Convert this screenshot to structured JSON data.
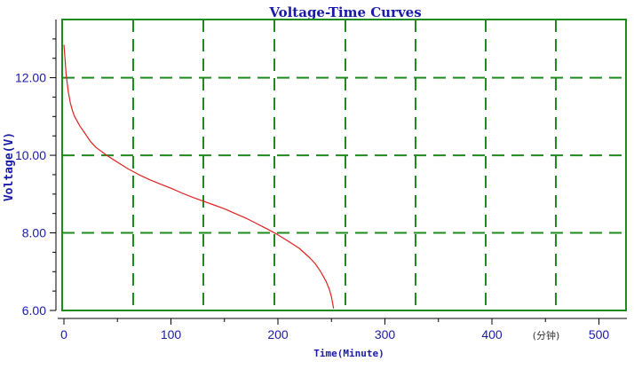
{
  "chart_data": {
    "type": "line",
    "title": "Voltage-Time Curves",
    "xlabel": "Time(Minute)",
    "ylabel": "Voltage(V)",
    "x_unit_note": "(分钟)",
    "xlim": [
      0,
      525
    ],
    "ylim": [
      6.0,
      13.5
    ],
    "x_ticks": [
      0,
      100,
      200,
      300,
      400,
      500
    ],
    "y_ticks": [
      6.0,
      8.0,
      10.0,
      12.0
    ],
    "y_tick_labels": [
      "6.00",
      "8.00",
      "10.00",
      "12.00"
    ],
    "grid": true,
    "colors": {
      "frame": "#1f8a1f",
      "grid": "#1f8a1f",
      "line": "#e02020",
      "text": "#1a1aa8"
    },
    "series": [
      {
        "x": [
          0,
          1,
          2,
          4,
          6,
          8,
          10,
          15,
          20,
          25,
          30,
          40,
          50,
          60,
          70,
          80,
          90,
          100,
          110,
          120,
          130,
          140,
          150,
          160,
          170,
          180,
          190,
          200,
          210,
          220,
          230,
          235,
          240,
          245,
          248,
          250,
          251,
          252
        ],
        "y": [
          12.85,
          12.5,
          12.1,
          11.65,
          11.35,
          11.15,
          11.0,
          10.75,
          10.55,
          10.35,
          10.2,
          10.0,
          9.82,
          9.65,
          9.5,
          9.37,
          9.26,
          9.15,
          9.03,
          8.92,
          8.82,
          8.72,
          8.62,
          8.5,
          8.38,
          8.24,
          8.1,
          7.95,
          7.78,
          7.6,
          7.35,
          7.2,
          7.0,
          6.75,
          6.55,
          6.35,
          6.2,
          6.05
        ]
      }
    ]
  }
}
